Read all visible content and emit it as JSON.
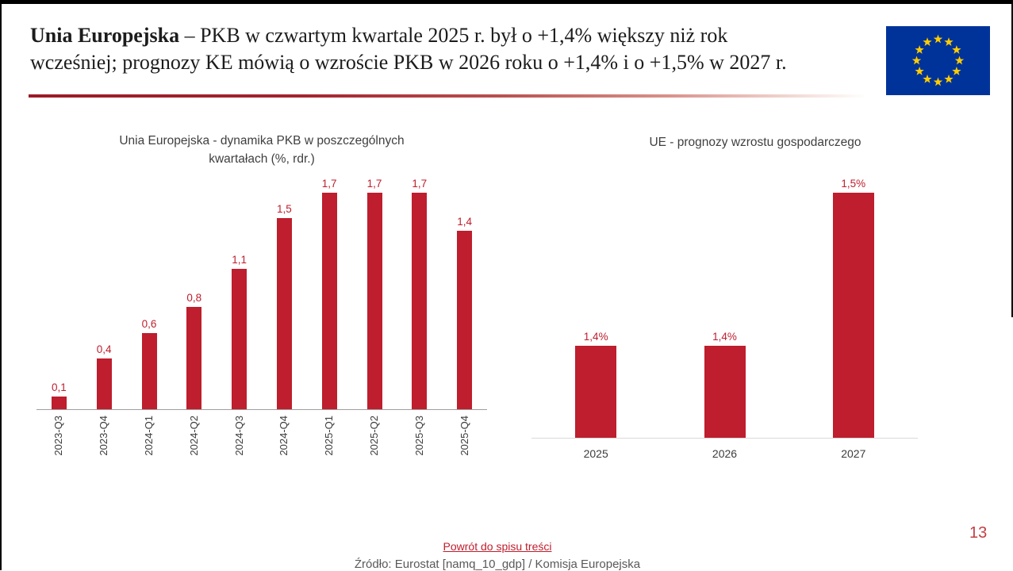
{
  "slide": {
    "title": {
      "bold": "Unia Europejska",
      "line1_rest": " – PKB w czwartym kwartale 2025 r. był o +1,4% większy niż rok",
      "line2": "wcześniej; prognozy KE mówią o wzroście PKB w 2026 roku o +1,4% i o +1,5% w 2027 r."
    },
    "footer": {
      "back_link": "Powrót do spisu treści",
      "source": "Źródło: Eurostat [namq_10_gdp] / Komisja Europejska",
      "page_number": "13"
    }
  },
  "colors": {
    "bar_red": "#BE1E2D",
    "label_red": "#BE1E2D",
    "divider_red": "#A01828",
    "axis_gray_left": "#9E9E9E",
    "axis_gray_right": "#D9D9D9",
    "flag_blue": "#003399",
    "flag_star_yellow": "#FFCC00",
    "page_number_red": "#C13F46"
  },
  "chart_data": [
    {
      "id": "eu-quarterly-gdp",
      "type": "bar",
      "title": "Unia Europejska - dynamika PKB w poszczególnych kwartałach (%, rdr.)",
      "categories": [
        "2023-Q3",
        "2023-Q4",
        "2024-Q1",
        "2024-Q2",
        "2024-Q3",
        "2024-Q4",
        "2025-Q1",
        "2025-Q2",
        "2025-Q3",
        "2025-Q4"
      ],
      "values": [
        0.1,
        0.4,
        0.6,
        0.8,
        1.1,
        1.5,
        1.7,
        1.7,
        1.7,
        1.4
      ],
      "data_labels": [
        "0,1",
        "0,4",
        "0,6",
        "0,8",
        "1,1",
        "1,5",
        "1,7",
        "1,7",
        "1,7",
        "1,4"
      ],
      "xlabel": "",
      "ylabel": "",
      "ylim": [
        0,
        1.78
      ],
      "grid": false,
      "legend": "none",
      "bar_color": "#BE1E2D",
      "x_tick_rotation": 90
    },
    {
      "id": "eu-growth-forecast",
      "type": "bar",
      "title": "UE - prognozy wzrostu gospodarczego",
      "categories": [
        "2025",
        "2026",
        "2027"
      ],
      "values": [
        1.4,
        1.4,
        1.5
      ],
      "data_labels": [
        "1,4%",
        "1,4%",
        "1,5%"
      ],
      "xlabel": "",
      "ylabel": "",
      "ylim": [
        1.34,
        1.5
      ],
      "grid": false,
      "legend": "none",
      "bar_color": "#BE1E2D",
      "x_tick_rotation": 0
    }
  ]
}
